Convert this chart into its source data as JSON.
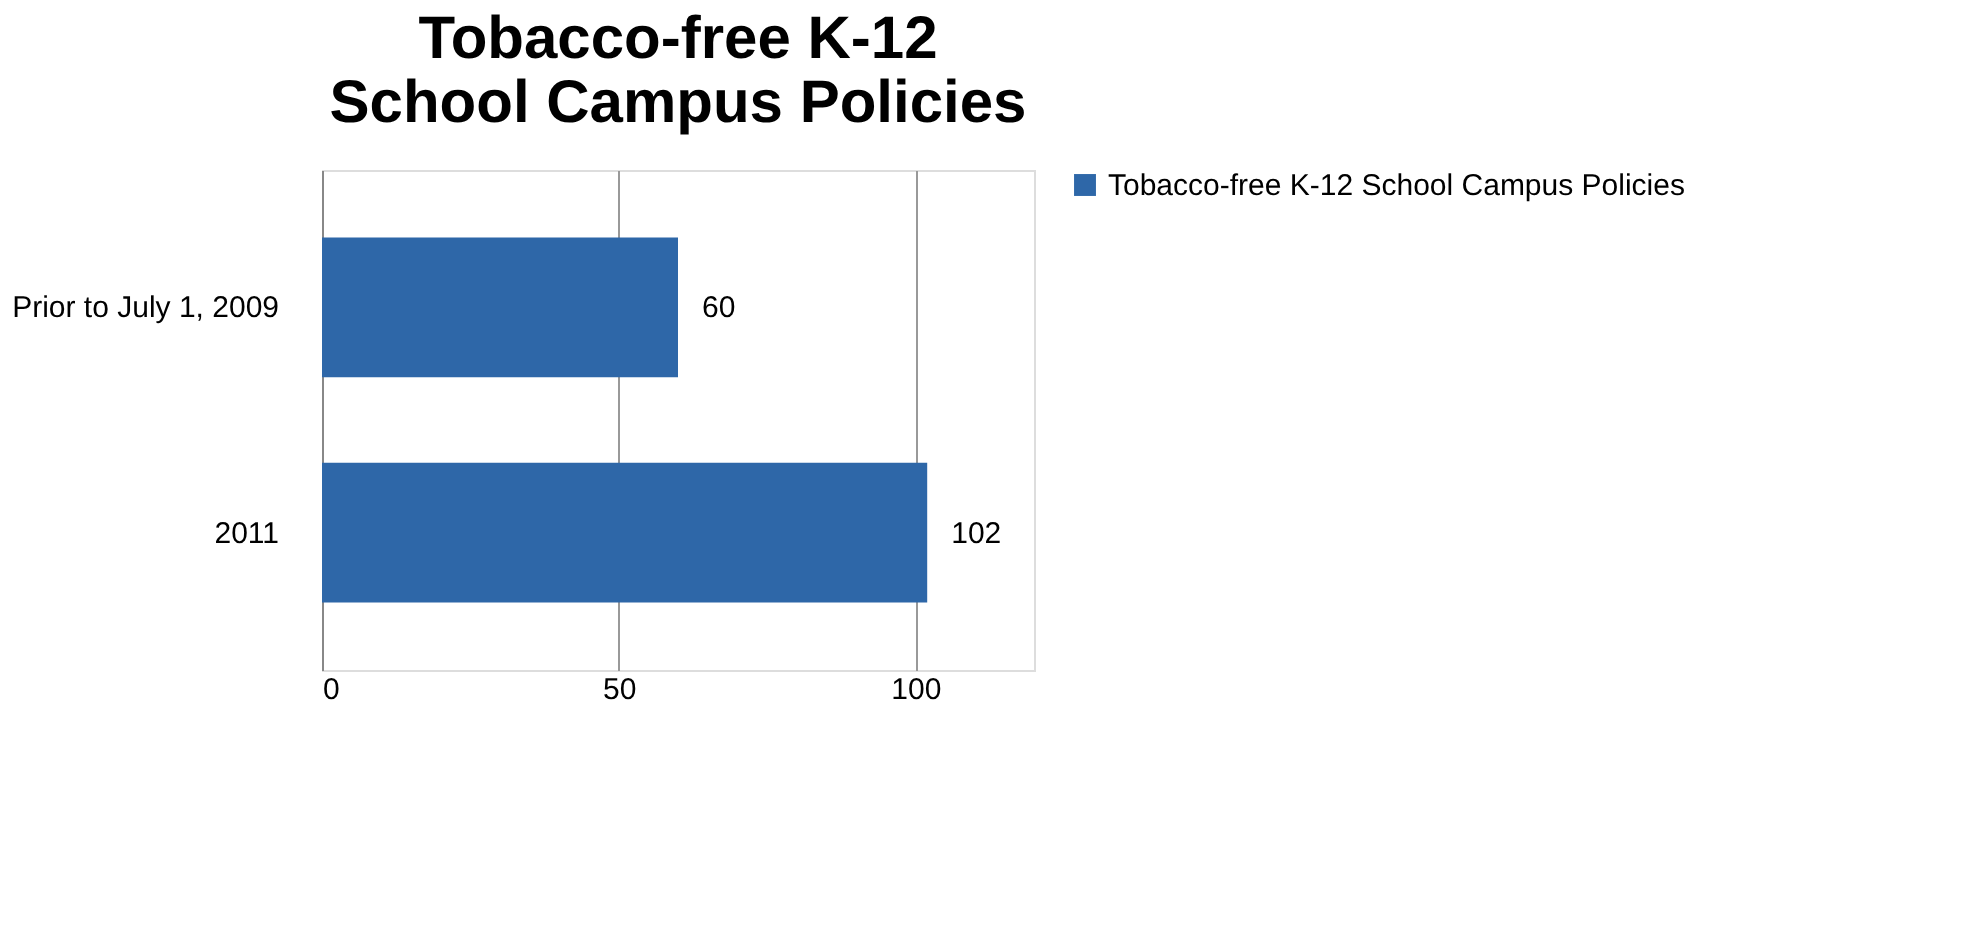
{
  "chart_data": {
    "type": "bar",
    "orientation": "horizontal",
    "title": [
      "Tobacco-free K-12",
      "School Campus Policies"
    ],
    "categories": [
      "Prior to July 1, 2009",
      "2011"
    ],
    "series": [
      {
        "name": "Tobacco-free K-12 School Campus Policies",
        "color": "#2e67a8",
        "values": [
          60,
          102
        ]
      }
    ],
    "xlim": [
      0,
      120
    ],
    "xticks": [
      0,
      50,
      100
    ],
    "grid": "x",
    "data_labels": true,
    "legend": "right"
  }
}
